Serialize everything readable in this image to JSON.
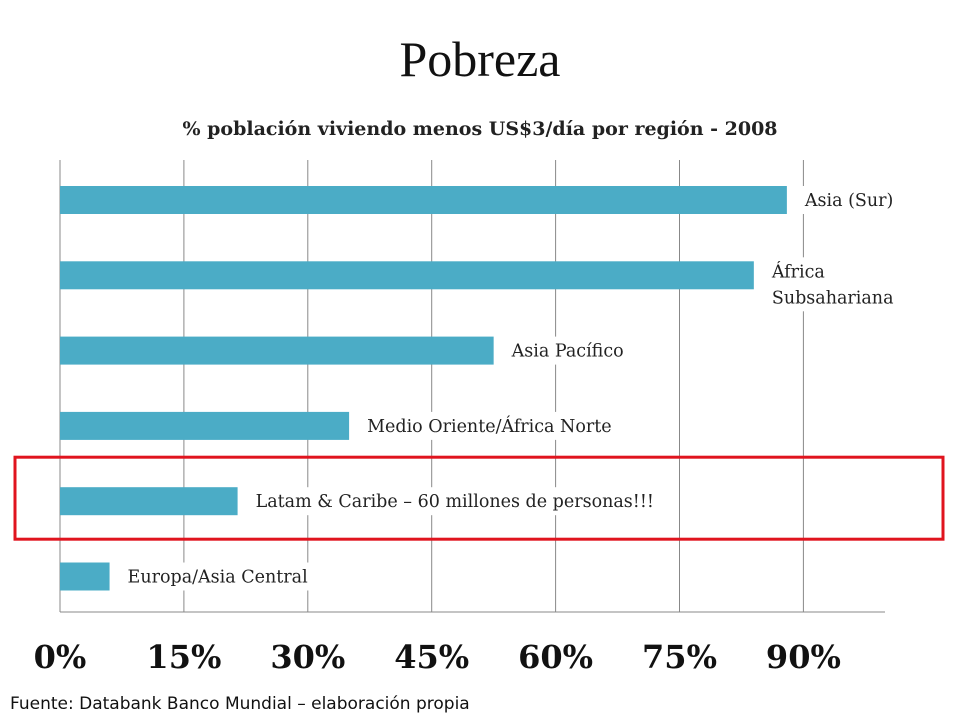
{
  "slide": {
    "title": "Pobreza",
    "source": "Fuente: Databank Banco Mundial – elaboración propia"
  },
  "colors": {
    "bar": "#4BACC6",
    "highlight": "#E0141E",
    "grid": "#888888"
  },
  "chart_data": {
    "type": "bar",
    "orientation": "horizontal",
    "title": "% población viviendo menos  US$3/día por región - 2008",
    "xlim": [
      0,
      100
    ],
    "xticks": [
      0,
      15,
      30,
      45,
      60,
      75,
      90
    ],
    "xtick_labels": [
      "0%",
      "15%",
      "30%",
      "45%",
      "60%",
      "75%",
      "90%"
    ],
    "grid": true,
    "categories": [
      "Asia (Sur)",
      "África Subsahariana",
      "Asia Pacífico",
      "Medio Oriente/África Norte",
      "Latam & Caribe – 60 millones de personas!!!",
      "Europa/Asia Central"
    ],
    "label_lines": [
      [
        "Asia (Sur)"
      ],
      [
        "África",
        "Subsahariana"
      ],
      [
        "Asia Pacífico"
      ],
      [
        "Medio Oriente/África Norte"
      ],
      [
        "Latam & Caribe – 60 millones de personas!!!"
      ],
      [
        "Europa/Asia Central"
      ]
    ],
    "values": [
      88,
      84,
      52.5,
      35,
      21.5,
      6
    ],
    "highlighted_category": "Latam & Caribe – 60 millones de personas!!!"
  }
}
